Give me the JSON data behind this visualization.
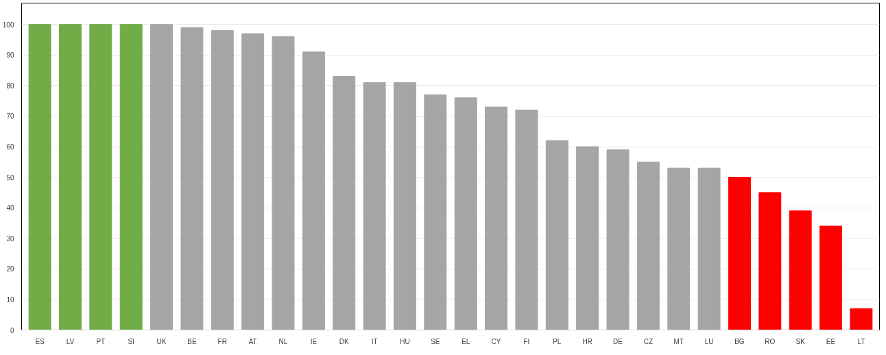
{
  "chart_data": {
    "type": "bar",
    "categories": [
      "ES",
      "LV",
      "PT",
      "SI",
      "UK",
      "BE",
      "FR",
      "AT",
      "NL",
      "IE",
      "DK",
      "IT",
      "HU",
      "SE",
      "EL",
      "CY",
      "FI",
      "PL",
      "HR",
      "DE",
      "CZ",
      "MT",
      "LU",
      "BG",
      "RO",
      "SK",
      "EE",
      "LT"
    ],
    "values": [
      100,
      100,
      100,
      100,
      100,
      99,
      98,
      97,
      96,
      91,
      83,
      81,
      81,
      77,
      76,
      73,
      72,
      62,
      60,
      59,
      55,
      53,
      53,
      50,
      45,
      39,
      34,
      7
    ],
    "colors": [
      "#70ad47",
      "#70ad47",
      "#70ad47",
      "#70ad47",
      "#a5a5a5",
      "#a5a5a5",
      "#a5a5a5",
      "#a5a5a5",
      "#a5a5a5",
      "#a5a5a5",
      "#a5a5a5",
      "#a5a5a5",
      "#a5a5a5",
      "#a5a5a5",
      "#a5a5a5",
      "#a5a5a5",
      "#a5a5a5",
      "#a5a5a5",
      "#a5a5a5",
      "#a5a5a5",
      "#a5a5a5",
      "#a5a5a5",
      "#a5a5a5",
      "#ff0000",
      "#ff0000",
      "#ff0000",
      "#ff0000",
      "#ff0000"
    ],
    "ylim": [
      0,
      100
    ],
    "yticks": [
      0,
      10,
      20,
      30,
      40,
      50,
      60,
      70,
      80,
      90,
      100
    ],
    "grid": "y"
  }
}
